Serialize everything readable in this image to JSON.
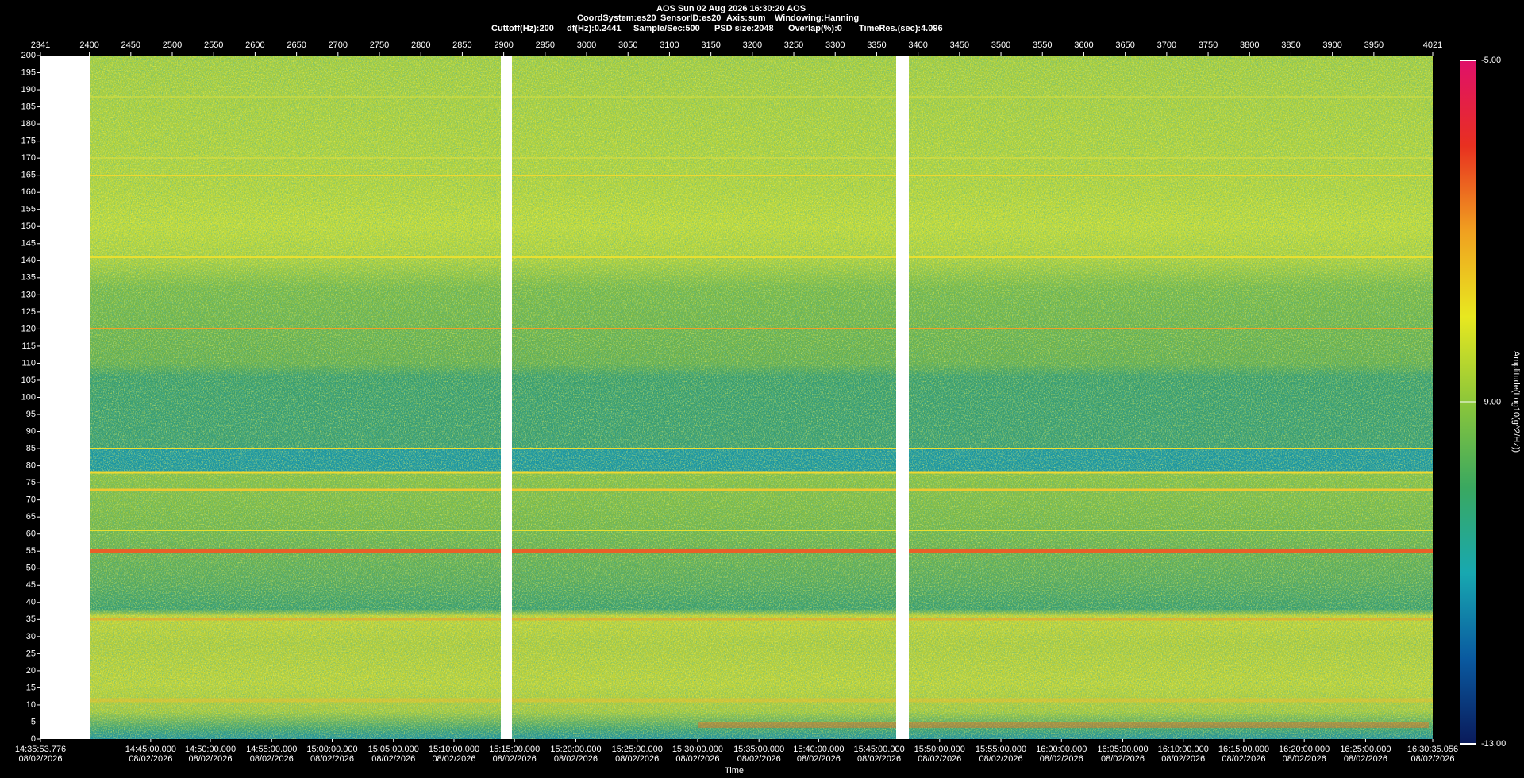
{
  "header": {
    "title": "AOS  Sun 02 Aug 2026 16:30:20  AOS",
    "line2": [
      "CoordSystem:es20",
      "SensorID:es20",
      "Axis:sum",
      "Windowing:Hanning"
    ],
    "line3": [
      "Cuttoff(Hz):200",
      "df(Hz):0.2441",
      "Sample/Sec:500",
      "PSD size:2048",
      "Overlap(%):0",
      "TimeRes.(sec):4.096"
    ]
  },
  "chart_data": {
    "type": "spectrogram",
    "xlabel": "Time",
    "colorbar_label": "Amplitude(Log10(g^2/Hz))",
    "xlim": [
      2341,
      4021
    ],
    "xticks": [
      2341,
      2400,
      2450,
      2500,
      2550,
      2600,
      2650,
      2700,
      2750,
      2800,
      2850,
      2900,
      2950,
      3000,
      3050,
      3100,
      3150,
      3200,
      3250,
      3300,
      3350,
      3400,
      3450,
      3500,
      3550,
      3600,
      3650,
      3700,
      3750,
      3800,
      3850,
      3900,
      3950,
      4021
    ],
    "x2ticks": [
      {
        "value": 2341,
        "label": "14:35:53.776"
      },
      {
        "value": 2474,
        "label": "14:45:00.000"
      },
      {
        "value": 2546,
        "label": "14:50:00.000"
      },
      {
        "value": 2620,
        "label": "14:55:00.000"
      },
      {
        "value": 2693,
        "label": "15:00:00.000"
      },
      {
        "value": 2767,
        "label": "15:05:00.000"
      },
      {
        "value": 2840,
        "label": "15:10:00.000"
      },
      {
        "value": 2913,
        "label": "15:15:00.000"
      },
      {
        "value": 2987,
        "label": "15:20:00.000"
      },
      {
        "value": 3061,
        "label": "15:25:00.000"
      },
      {
        "value": 3134,
        "label": "15:30:00.000"
      },
      {
        "value": 3208,
        "label": "15:35:00.000"
      },
      {
        "value": 3280,
        "label": "15:40:00.000"
      },
      {
        "value": 3353,
        "label": "15:45:00.000"
      },
      {
        "value": 3426,
        "label": "15:50:00.000"
      },
      {
        "value": 3500,
        "label": "15:55:00.000"
      },
      {
        "value": 3573,
        "label": "16:00:00.000"
      },
      {
        "value": 3647,
        "label": "16:05:00.000"
      },
      {
        "value": 3720,
        "label": "16:10:00.000"
      },
      {
        "value": 3793,
        "label": "16:15:00.000"
      },
      {
        "value": 3866,
        "label": "16:20:00.000"
      },
      {
        "value": 3940,
        "label": "16:25:00.000"
      },
      {
        "value": 4021,
        "label": "16:30:35.056"
      }
    ],
    "x2tick_dates": [
      "08/02/2026",
      "08/02/2026",
      "08/02/2026",
      "08/02/2026",
      "08/02/2026",
      "08/02/2026",
      "08/02/2026",
      "08/02/2026",
      "08/02/2026",
      "08/02/2026",
      "08/02/2026",
      "08/02/2026",
      "08/02/2026",
      "08/02/2026",
      "08/02/2026",
      "08/02/2026",
      "08/02/2026",
      "08/02/2026",
      "08/02/2026",
      "08/02/2026",
      "08/02/2026",
      "08/02/2026",
      "08/02/2026"
    ],
    "ylim": [
      0,
      200
    ],
    "yticks": [
      0,
      5,
      10,
      15,
      20,
      25,
      30,
      35,
      40,
      45,
      50,
      55,
      60,
      65,
      70,
      75,
      80,
      85,
      90,
      95,
      100,
      105,
      110,
      115,
      120,
      125,
      130,
      135,
      140,
      145,
      150,
      155,
      160,
      165,
      170,
      175,
      180,
      185,
      190,
      195,
      200
    ],
    "clim": [
      -13,
      -5
    ],
    "cticks": [
      {
        "value": -5,
        "label": "-5.00"
      },
      {
        "value": -9,
        "label": "-9.00"
      },
      {
        "value": -13,
        "label": "-13.00"
      }
    ],
    "colormap": [
      "#0a1a5a",
      "#0a5aa0",
      "#18a8b0",
      "#3aa860",
      "#8cc63a",
      "#e8e820",
      "#f0a020",
      "#e83020",
      "#e0106a"
    ]
  }
}
